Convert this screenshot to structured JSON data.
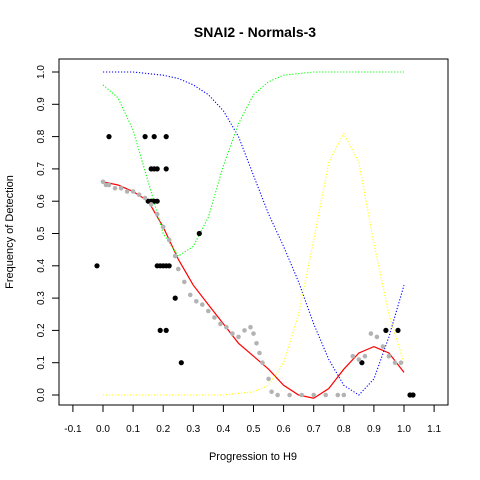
{
  "chart_data": {
    "type": "scatter",
    "title": "SNAI2 - Normals-3",
    "xlabel": "Progression to H9",
    "ylabel": "Frequency of Detection",
    "xlim": [
      -0.15,
      1.15
    ],
    "ylim": [
      -0.03,
      1.05
    ],
    "x_ticks": [
      "-0.1",
      "0.0",
      "0.1",
      "0.2",
      "0.3",
      "0.4",
      "0.5",
      "0.6",
      "0.7",
      "0.8",
      "0.9",
      "1.0",
      "1.1"
    ],
    "y_ticks": [
      "0.0",
      "0.1",
      "0.2",
      "0.3",
      "0.4",
      "0.5",
      "0.6",
      "0.7",
      "0.8",
      "0.9",
      "1.0"
    ],
    "grid": false,
    "legend": "none",
    "colors": {
      "observed": "#000000",
      "smoothed": "#b3b3b3",
      "fit": "#ff0000",
      "blue_curve": "#0000ff",
      "green_curve": "#00ff00",
      "yellow_curve": "#ffff00"
    },
    "series": [
      {
        "kind": "points",
        "color": "#000000",
        "points": [
          [
            -0.02,
            0.4
          ],
          [
            0.02,
            0.8
          ],
          [
            0.14,
            0.8
          ],
          [
            0.17,
            0.8
          ],
          [
            0.21,
            0.8
          ],
          [
            0.15,
            0.6
          ],
          [
            0.16,
            0.6
          ],
          [
            0.17,
            0.6
          ],
          [
            0.18,
            0.6
          ],
          [
            0.16,
            0.7
          ],
          [
            0.17,
            0.7
          ],
          [
            0.18,
            0.7
          ],
          [
            0.21,
            0.7
          ],
          [
            0.18,
            0.4
          ],
          [
            0.19,
            0.4
          ],
          [
            0.2,
            0.4
          ],
          [
            0.21,
            0.4
          ],
          [
            0.22,
            0.4
          ],
          [
            0.19,
            0.2
          ],
          [
            0.21,
            0.2
          ],
          [
            0.24,
            0.3
          ],
          [
            0.26,
            0.1
          ],
          [
            0.32,
            0.5
          ],
          [
            0.86,
            0.1
          ],
          [
            0.94,
            0.2
          ],
          [
            0.98,
            0.2
          ],
          [
            1.02,
            0.0
          ],
          [
            1.03,
            0.0
          ]
        ]
      },
      {
        "kind": "points",
        "color": "#b3b3b3",
        "points": [
          [
            0.0,
            0.66
          ],
          [
            0.01,
            0.65
          ],
          [
            0.02,
            0.65
          ],
          [
            0.04,
            0.64
          ],
          [
            0.06,
            0.64
          ],
          [
            0.08,
            0.63
          ],
          [
            0.1,
            0.63
          ],
          [
            0.12,
            0.62
          ],
          [
            0.14,
            0.61
          ],
          [
            0.16,
            0.59
          ],
          [
            0.18,
            0.56
          ],
          [
            0.2,
            0.52
          ],
          [
            0.22,
            0.48
          ],
          [
            0.24,
            0.43
          ],
          [
            0.25,
            0.39
          ],
          [
            0.27,
            0.35
          ],
          [
            0.29,
            0.31
          ],
          [
            0.31,
            0.29
          ],
          [
            0.33,
            0.28
          ],
          [
            0.35,
            0.26
          ],
          [
            0.37,
            0.24
          ],
          [
            0.39,
            0.22
          ],
          [
            0.41,
            0.21
          ],
          [
            0.43,
            0.19
          ],
          [
            0.45,
            0.18
          ],
          [
            0.47,
            0.2
          ],
          [
            0.49,
            0.21
          ],
          [
            0.5,
            0.19
          ],
          [
            0.51,
            0.16
          ],
          [
            0.52,
            0.13
          ],
          [
            0.53,
            0.1
          ],
          [
            0.55,
            0.05
          ],
          [
            0.56,
            0.01
          ],
          [
            0.58,
            0.0
          ],
          [
            0.62,
            0.0
          ],
          [
            0.66,
            0.0
          ],
          [
            0.7,
            0.0
          ],
          [
            0.74,
            0.0
          ],
          [
            0.78,
            0.0
          ],
          [
            0.8,
            0.0
          ],
          [
            0.83,
            0.12
          ],
          [
            0.85,
            0.11
          ],
          [
            0.87,
            0.12
          ],
          [
            0.89,
            0.19
          ],
          [
            0.91,
            0.18
          ],
          [
            0.93,
            0.15
          ],
          [
            0.95,
            0.12
          ],
          [
            0.97,
            0.1
          ],
          [
            0.99,
            0.1
          ]
        ]
      },
      {
        "kind": "line",
        "color": "#ff0000",
        "x": [
          0.0,
          0.05,
          0.1,
          0.15,
          0.2,
          0.25,
          0.3,
          0.35,
          0.4,
          0.45,
          0.5,
          0.55,
          0.6,
          0.65,
          0.7,
          0.75,
          0.8,
          0.85,
          0.9,
          0.95,
          1.0
        ],
        "y": [
          0.66,
          0.65,
          0.63,
          0.6,
          0.52,
          0.42,
          0.34,
          0.28,
          0.22,
          0.16,
          0.12,
          0.08,
          0.03,
          0.0,
          -0.01,
          0.02,
          0.08,
          0.13,
          0.15,
          0.13,
          0.07
        ]
      },
      {
        "kind": "dotted",
        "color": "#0000ff",
        "x": [
          0.0,
          0.1,
          0.2,
          0.25,
          0.3,
          0.35,
          0.4,
          0.45,
          0.5,
          0.55,
          0.6,
          0.65,
          0.7,
          0.75,
          0.8,
          0.85,
          0.9,
          0.95,
          1.0
        ],
        "y": [
          1.0,
          1.0,
          0.99,
          0.98,
          0.96,
          0.93,
          0.88,
          0.8,
          0.68,
          0.56,
          0.46,
          0.35,
          0.22,
          0.11,
          0.03,
          0.0,
          0.05,
          0.18,
          0.34
        ]
      },
      {
        "kind": "dotted",
        "color": "#00ff00",
        "x": [
          0.0,
          0.05,
          0.1,
          0.15,
          0.2,
          0.25,
          0.3,
          0.35,
          0.4,
          0.45,
          0.5,
          0.55,
          0.6,
          0.7,
          0.8,
          0.9,
          1.0
        ],
        "y": [
          0.96,
          0.92,
          0.82,
          0.66,
          0.5,
          0.43,
          0.46,
          0.55,
          0.71,
          0.84,
          0.93,
          0.97,
          0.99,
          1.0,
          1.0,
          1.0,
          1.0
        ]
      },
      {
        "kind": "dotted",
        "color": "#ffff00",
        "x": [
          0.0,
          0.1,
          0.2,
          0.3,
          0.4,
          0.5,
          0.55,
          0.6,
          0.65,
          0.7,
          0.75,
          0.8,
          0.85,
          0.9,
          0.95,
          1.0
        ],
        "y": [
          0.0,
          0.0,
          0.0,
          0.0,
          0.0,
          0.01,
          0.03,
          0.1,
          0.25,
          0.48,
          0.72,
          0.81,
          0.72,
          0.47,
          0.25,
          0.1
        ]
      }
    ]
  }
}
